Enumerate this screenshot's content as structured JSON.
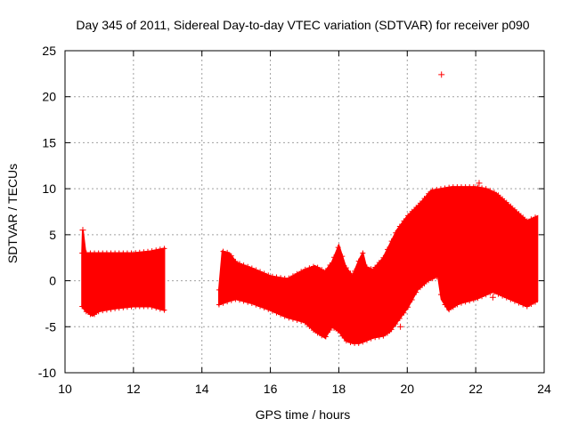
{
  "chart_data": {
    "type": "scatter",
    "title": "Day 345 of 2011, Sidereal Day-to-day VTEC variation (SDTVAR) for receiver p090",
    "xlabel": "GPS time / hours",
    "ylabel": "SDTVAR / TECUs",
    "xlim": [
      10,
      24
    ],
    "ylim": [
      -10,
      25
    ],
    "xticks": [
      10,
      12,
      14,
      16,
      18,
      20,
      22,
      24
    ],
    "yticks": [
      -10,
      -5,
      0,
      5,
      10,
      15,
      20,
      25
    ],
    "xtick_labels": [
      "10",
      "12",
      "14",
      "16",
      "18",
      "20",
      "22",
      "24"
    ],
    "ytick_labels": [
      "-10",
      "-5",
      "0",
      "5",
      "10",
      "15",
      "20",
      "25"
    ],
    "grid": true,
    "series": [
      {
        "name": "SDTVAR",
        "color": "#ff0000",
        "marker": "plus",
        "band_upper": [
          [
            10.5,
            3.0
          ],
          [
            10.52,
            5.5
          ],
          [
            10.6,
            3.0
          ],
          [
            11.0,
            3.0
          ],
          [
            11.5,
            3.0
          ],
          [
            12.0,
            3.0
          ],
          [
            12.5,
            3.2
          ],
          [
            12.9,
            3.5
          ]
        ],
        "band_lower": [
          [
            10.5,
            -2.8
          ],
          [
            10.6,
            -3.3
          ],
          [
            10.8,
            -3.8
          ],
          [
            11.0,
            -3.3
          ],
          [
            11.5,
            -3.0
          ],
          [
            12.0,
            -2.8
          ],
          [
            12.5,
            -2.8
          ],
          [
            12.9,
            -3.2
          ]
        ],
        "band2_upper": [
          [
            14.5,
            -1.0
          ],
          [
            14.6,
            3.2
          ],
          [
            14.8,
            3.0
          ],
          [
            15.0,
            2.0
          ],
          [
            15.5,
            1.3
          ],
          [
            16.0,
            0.5
          ],
          [
            16.5,
            0.2
          ],
          [
            17.0,
            1.2
          ],
          [
            17.3,
            1.6
          ],
          [
            17.6,
            1.0
          ],
          [
            17.8,
            2.0
          ],
          [
            18.0,
            3.8
          ],
          [
            18.2,
            1.5
          ],
          [
            18.4,
            0.5
          ],
          [
            18.6,
            2.3
          ],
          [
            18.7,
            3.0
          ],
          [
            18.8,
            1.5
          ],
          [
            19.0,
            1.2
          ],
          [
            19.3,
            2.5
          ],
          [
            19.5,
            4.0
          ],
          [
            19.7,
            5.5
          ],
          [
            20.0,
            7.0
          ],
          [
            20.4,
            8.5
          ],
          [
            20.7,
            9.8
          ],
          [
            21.0,
            10.0
          ],
          [
            21.3,
            10.2
          ],
          [
            21.6,
            10.2
          ],
          [
            22.0,
            10.2
          ],
          [
            22.3,
            10.0
          ],
          [
            22.6,
            9.5
          ],
          [
            22.9,
            8.5
          ],
          [
            23.2,
            7.5
          ],
          [
            23.5,
            6.5
          ],
          [
            23.8,
            7.0
          ]
        ],
        "band2_lower": [
          [
            14.5,
            -2.6
          ],
          [
            14.8,
            -2.2
          ],
          [
            15.0,
            -2.0
          ],
          [
            15.5,
            -2.5
          ],
          [
            16.0,
            -3.2
          ],
          [
            16.5,
            -4.0
          ],
          [
            17.0,
            -4.5
          ],
          [
            17.3,
            -5.5
          ],
          [
            17.6,
            -6.2
          ],
          [
            17.8,
            -5.0
          ],
          [
            18.0,
            -5.5
          ],
          [
            18.2,
            -6.5
          ],
          [
            18.4,
            -6.8
          ],
          [
            18.6,
            -6.8
          ],
          [
            18.8,
            -6.5
          ],
          [
            19.0,
            -6.2
          ],
          [
            19.3,
            -6.0
          ],
          [
            19.5,
            -5.5
          ],
          [
            19.7,
            -4.5
          ],
          [
            20.0,
            -3.0
          ],
          [
            20.3,
            -1.0
          ],
          [
            20.6,
            0.0
          ],
          [
            20.9,
            0.5
          ],
          [
            21.0,
            -2.0
          ],
          [
            21.2,
            -3.2
          ],
          [
            21.5,
            -2.5
          ],
          [
            22.0,
            -2.0
          ],
          [
            22.5,
            -1.2
          ],
          [
            23.0,
            -2.0
          ],
          [
            23.5,
            -2.8
          ],
          [
            23.8,
            -2.2
          ]
        ],
        "outliers": [
          [
            21.0,
            22.4
          ],
          [
            22.3,
            -1.0
          ],
          [
            22.5,
            -1.8
          ],
          [
            19.8,
            -5.0
          ],
          [
            10.52,
            5.5
          ],
          [
            22.1,
            10.6
          ]
        ]
      }
    ]
  }
}
